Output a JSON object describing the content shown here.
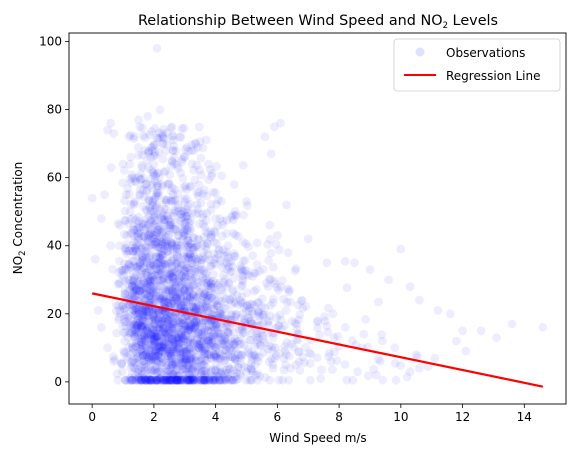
{
  "chart_data": {
    "type": "scatter",
    "title": {
      "prefix": "Relationship Between Wind Speed and NO",
      "subscript": "2",
      "suffix": " Levels"
    },
    "xlabel": "Wind Speed m/s",
    "ylabel": {
      "prefix": "NO",
      "subscript": "2",
      "suffix": " Concentration"
    },
    "xlim": [
      -0.75,
      15.35
    ],
    "ylim": [
      -6.5,
      102.5
    ],
    "xticks": [
      0,
      2,
      4,
      6,
      8,
      10,
      12,
      14
    ],
    "yticks": [
      0,
      20,
      40,
      60,
      80,
      100
    ],
    "grid": false,
    "legend": {
      "placement": "top-right",
      "entries": [
        "Observations",
        "Regression Line"
      ]
    },
    "colors": {
      "points": "#0000ff",
      "regression": "#ff0000"
    },
    "series": [
      {
        "name": "Observations",
        "kind": "scatter",
        "alpha": 0.07,
        "points": [
          [
            0.0,
            54
          ],
          [
            0.1,
            36
          ],
          [
            0.2,
            21
          ],
          [
            0.3,
            48
          ],
          [
            0.4,
            55
          ],
          [
            0.5,
            74
          ],
          [
            0.6,
            76
          ],
          [
            0.7,
            73
          ],
          [
            1.0,
            64
          ],
          [
            1.2,
            72
          ],
          [
            1.5,
            77
          ],
          [
            1.8,
            78
          ],
          [
            2.1,
            98
          ],
          [
            2.2,
            80
          ],
          [
            1.9,
            66
          ],
          [
            2.3,
            70
          ],
          [
            2.6,
            72
          ],
          [
            3.0,
            66
          ],
          [
            3.3,
            68
          ],
          [
            4.6,
            58
          ],
          [
            5.0,
            53
          ],
          [
            5.6,
            72
          ],
          [
            5.9,
            75
          ],
          [
            6.1,
            76
          ],
          [
            5.8,
            67
          ],
          [
            6.3,
            52
          ],
          [
            6.0,
            43
          ],
          [
            7.0,
            42
          ],
          [
            7.6,
            35
          ],
          [
            8.5,
            35
          ],
          [
            9.0,
            33
          ],
          [
            9.6,
            30
          ],
          [
            10.0,
            39
          ],
          [
            10.3,
            28
          ],
          [
            10.6,
            24
          ],
          [
            11.2,
            21
          ],
          [
            11.6,
            20
          ],
          [
            12.0,
            15
          ],
          [
            12.6,
            15
          ],
          [
            13.1,
            13
          ],
          [
            13.6,
            17
          ],
          [
            14.6,
            16
          ],
          [
            12.1,
            9
          ],
          [
            10.3,
            3
          ],
          [
            10.6,
            4
          ],
          [
            9.2,
            2
          ],
          [
            8.6,
            3
          ],
          [
            7.4,
            1
          ],
          [
            6.6,
            5
          ],
          [
            5.3,
            2
          ],
          [
            4.3,
            1
          ],
          [
            3.1,
            2
          ],
          [
            2.2,
            1
          ],
          [
            1.4,
            2
          ],
          [
            0.7,
            6
          ],
          [
            0.5,
            10
          ],
          [
            0.3,
            16
          ],
          [
            0.6,
            40
          ],
          [
            0.9,
            46
          ],
          [
            1.1,
            55
          ],
          [
            1.3,
            60
          ],
          [
            1.6,
            35
          ],
          [
            1.7,
            58
          ],
          [
            2.0,
            50
          ],
          [
            2.4,
            44
          ],
          [
            2.8,
            52
          ],
          [
            3.2,
            45
          ],
          [
            3.6,
            38
          ],
          [
            4.0,
            48
          ],
          [
            4.4,
            40
          ],
          [
            4.8,
            34
          ],
          [
            5.2,
            31
          ],
          [
            5.7,
            28
          ],
          [
            6.4,
            27
          ],
          [
            6.8,
            24
          ],
          [
            7.3,
            18
          ],
          [
            7.8,
            20
          ],
          [
            8.2,
            16
          ],
          [
            8.8,
            14
          ],
          [
            9.4,
            12
          ],
          [
            9.8,
            10
          ],
          [
            10.5,
            8
          ],
          [
            11.1,
            7
          ],
          [
            11.8,
            12
          ]
        ],
        "density": {
          "x_center": 2.7,
          "y_center": 13,
          "note_count": 2600
        }
      },
      {
        "name": "Regression Line",
        "kind": "line",
        "x": [
          0.0,
          14.6
        ],
        "y": [
          26.0,
          -1.4
        ]
      }
    ]
  }
}
